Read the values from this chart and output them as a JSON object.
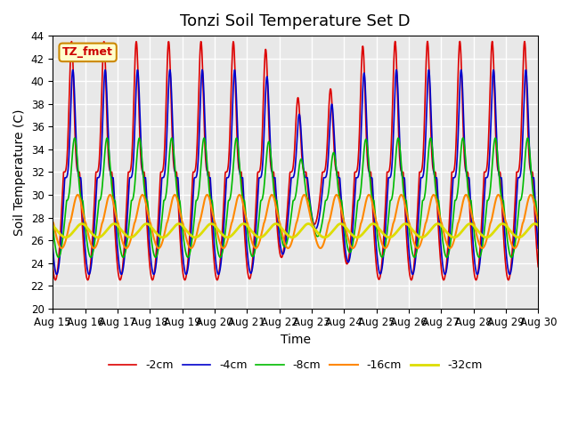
{
  "title": "Tonzi Soil Temperature Set D",
  "xlabel": "Time",
  "ylabel": "Soil Temperature (C)",
  "ylim": [
    20,
    44
  ],
  "xlim": [
    0,
    15
  ],
  "x_tick_labels": [
    "Aug 15",
    "Aug 16",
    "Aug 17",
    "Aug 18",
    "Aug 19",
    "Aug 20",
    "Aug 21",
    "Aug 22",
    "Aug 23",
    "Aug 24",
    "Aug 25",
    "Aug 26",
    "Aug 27",
    "Aug 28",
    "Aug 29",
    "Aug 30"
  ],
  "legend_label": "TZ_fmet",
  "series": [
    {
      "label": "-2cm",
      "color": "#dd0000",
      "lw": 1.2
    },
    {
      "label": "-4cm",
      "color": "#0000cc",
      "lw": 1.2
    },
    {
      "label": "-8cm",
      "color": "#00bb00",
      "lw": 1.2
    },
    {
      "label": "-16cm",
      "color": "#ff8800",
      "lw": 1.5
    },
    {
      "label": "-32cm",
      "color": "#dddd00",
      "lw": 2.0
    }
  ],
  "bg_color": "#e8e8e8",
  "fig_bg_color": "#ffffff",
  "grid_color": "#ffffff",
  "title_fontsize": 13,
  "axis_fontsize": 10,
  "tick_fontsize": 8.5
}
